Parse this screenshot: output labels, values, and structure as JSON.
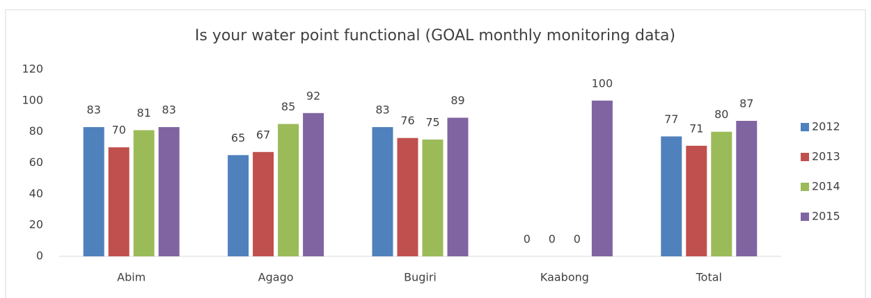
{
  "chart_data": {
    "type": "bar",
    "title": "Is your water point functional (GOAL monthly monitoring data)",
    "categories": [
      "Abim",
      "Agago",
      "Bugiri",
      "Kaabong",
      "Total"
    ],
    "series": [
      {
        "name": "2012",
        "color": "#4f81bd",
        "values": [
          83,
          65,
          83,
          0,
          77
        ]
      },
      {
        "name": "2013",
        "color": "#c0504d",
        "values": [
          70,
          67,
          76,
          0,
          71
        ]
      },
      {
        "name": "2014",
        "color": "#9bbb59",
        "values": [
          81,
          85,
          75,
          0,
          80
        ]
      },
      {
        "name": "2015",
        "color": "#8064a2",
        "values": [
          83,
          92,
          89,
          100,
          87
        ]
      }
    ],
    "ylim": [
      0,
      120
    ],
    "yticks": [
      0,
      20,
      40,
      60,
      80,
      100,
      120
    ],
    "grid": false,
    "legend": "right"
  }
}
